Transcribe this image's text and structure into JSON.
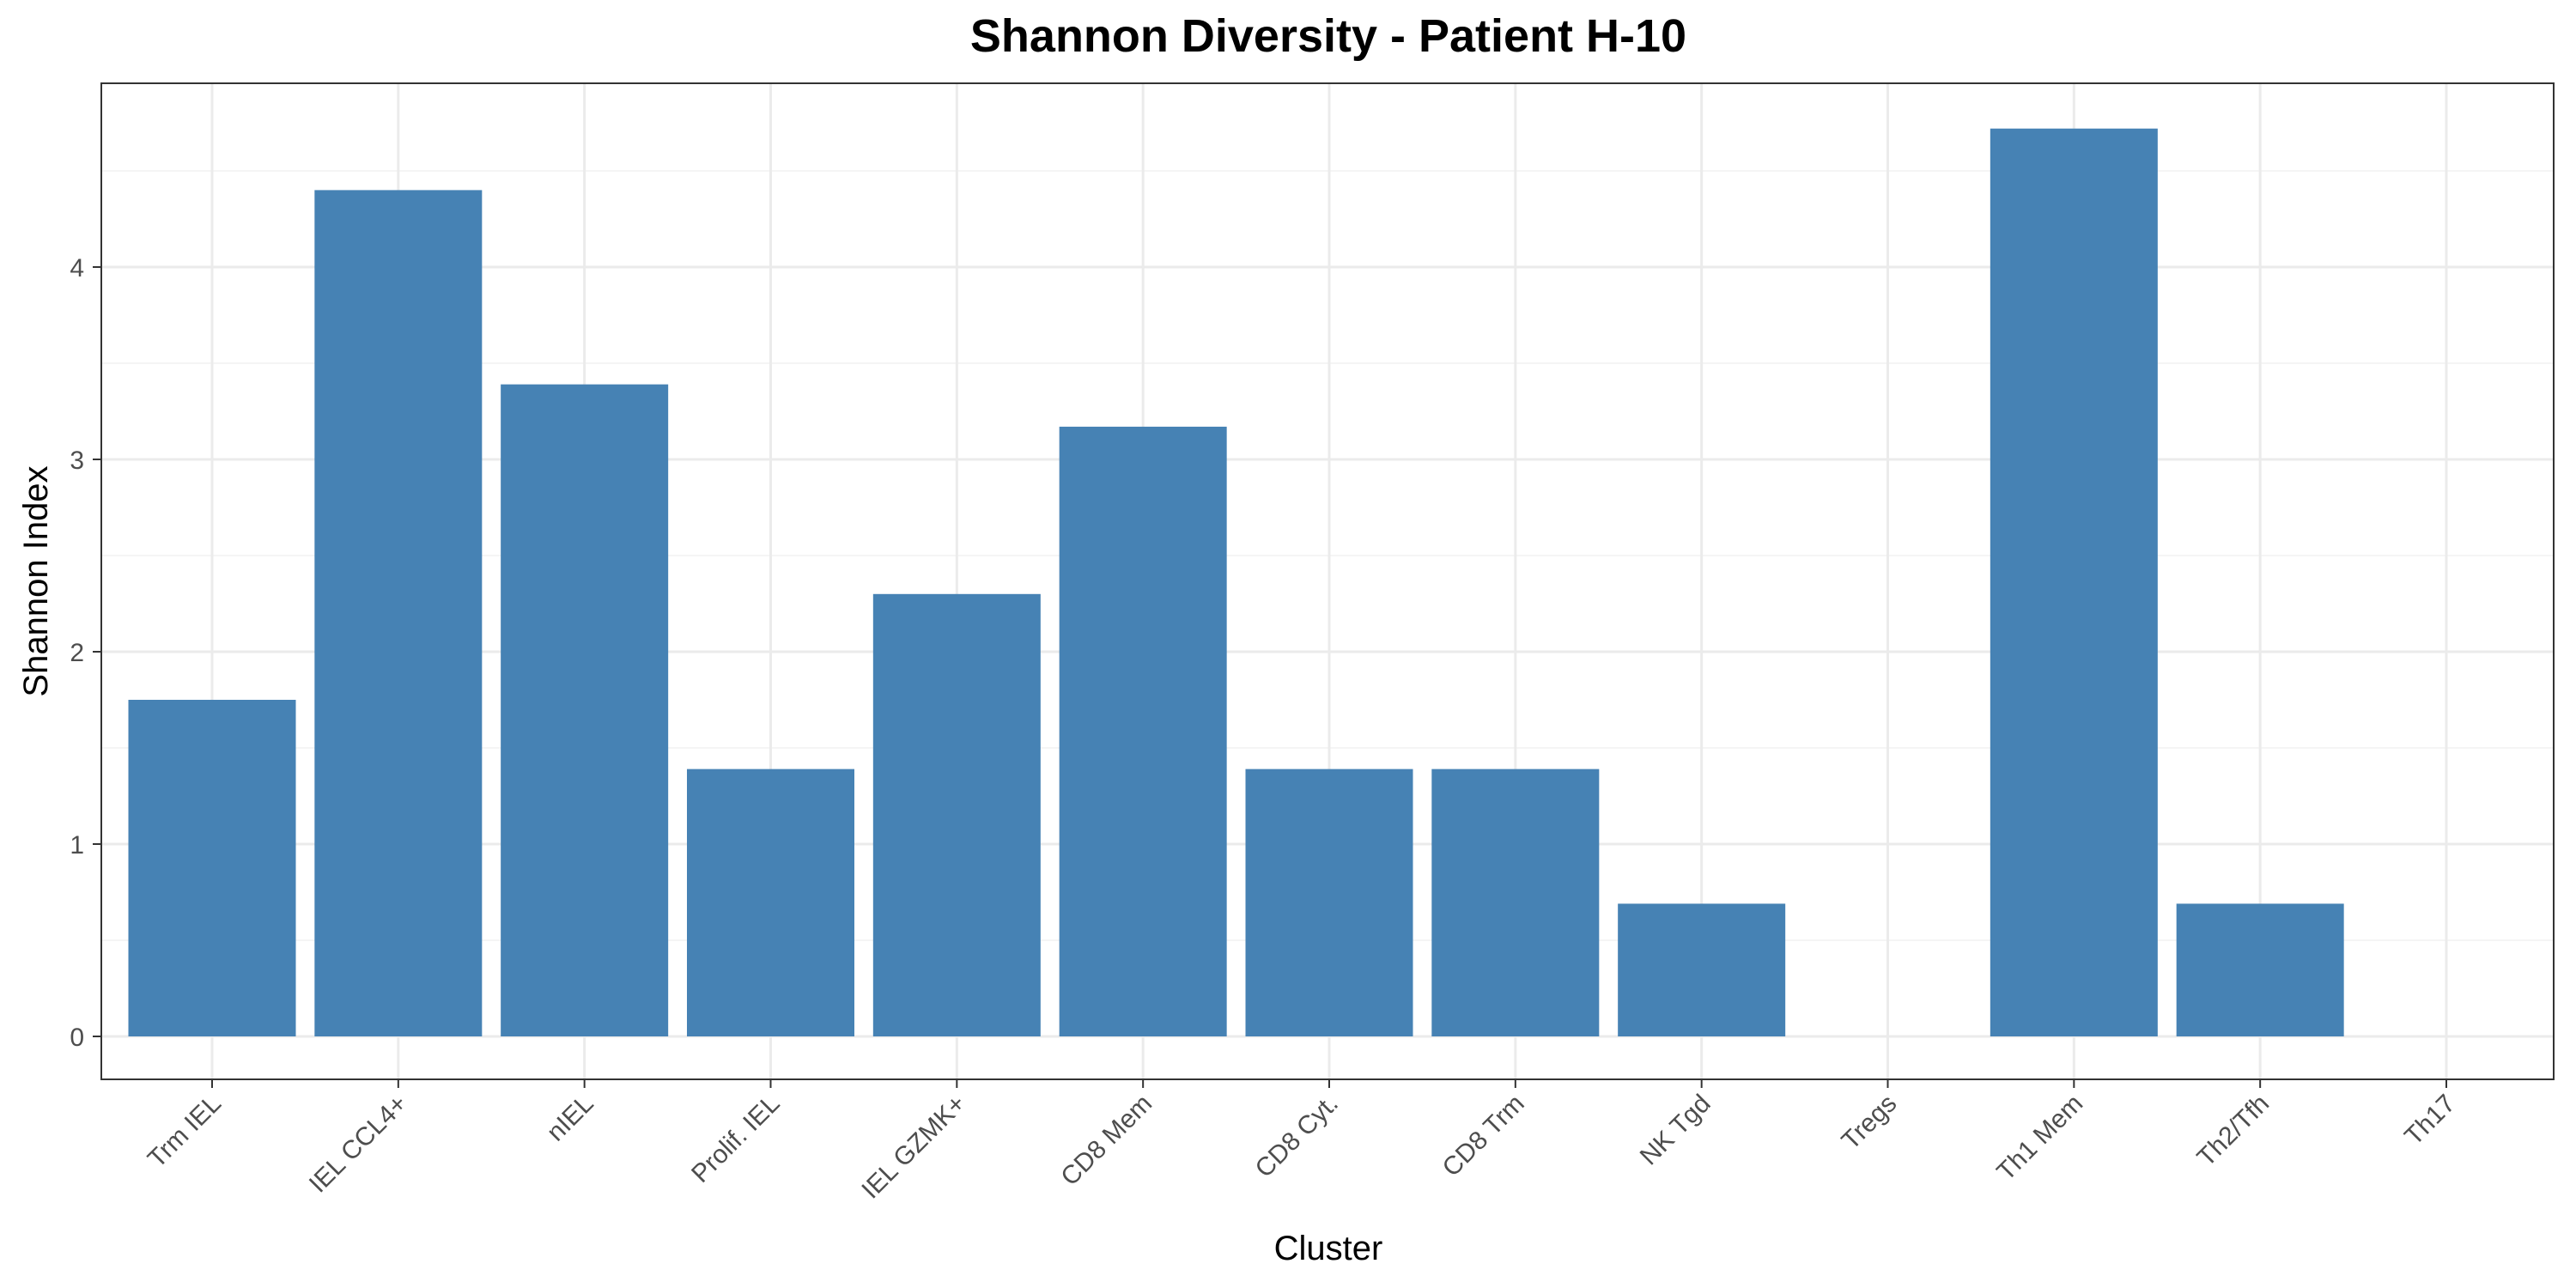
{
  "chart_data": {
    "type": "bar",
    "title": "Shannon Diversity - Patient H-10",
    "xlabel": "Cluster",
    "ylabel": "Shannon Index",
    "categories": [
      "Trm IEL",
      "IEL CCL4+",
      "nIEL",
      "Prolif. IEL",
      "IEL GZMK+",
      "CD8 Mem",
      "CD8 Cyt.",
      "CD8 Trm",
      "NK Tgd",
      "Tregs",
      "Th1 Mem",
      "Th2/Tfh",
      "Th17"
    ],
    "values": [
      1.75,
      4.4,
      3.39,
      1.39,
      2.3,
      3.17,
      1.39,
      1.39,
      0.69,
      0,
      4.72,
      0.69,
      0
    ],
    "yticks": [
      0,
      1,
      2,
      3,
      4
    ],
    "ylim": [
      -0.23,
      4.95
    ],
    "grid": true,
    "bar_color": "#4682B4"
  }
}
